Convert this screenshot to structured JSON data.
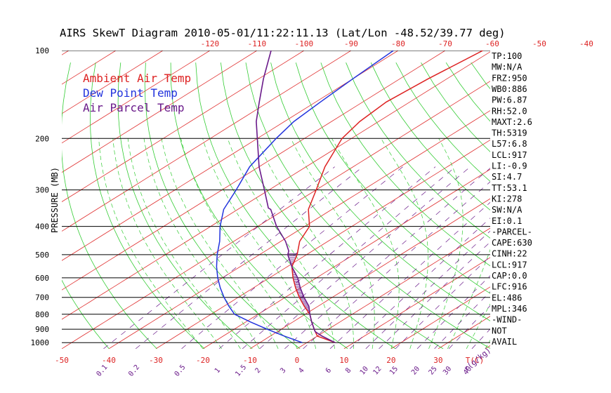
{
  "chart_data": {
    "type": "line",
    "title": "AIRS SkewT Diagram 2010-05-01/11:22:11.13 (Lat/Lon -48.52/39.77 deg)",
    "ylabel": "PRESSURE (MB)",
    "pressure_ticks": [
      "100",
      "200",
      "300",
      "400",
      "500",
      "600",
      "700",
      "800",
      "900",
      "1000"
    ],
    "pressure_levels": [
      100,
      200,
      300,
      400,
      500,
      600,
      700,
      800,
      900,
      1000
    ],
    "top_temp_ticks": [
      "-120",
      "-110",
      "-100",
      "-90",
      "-80",
      "-70",
      "-60",
      "-50",
      "-40"
    ],
    "top_temp_values": [
      -120,
      -110,
      -100,
      -90,
      -80,
      -70,
      -60,
      -50,
      -40
    ],
    "bottom_temp_ticks": [
      "-50",
      "-40",
      "-30",
      "-20",
      "-10",
      "0",
      "10",
      "20",
      "30",
      "T(C)"
    ],
    "bottom_temp_values": [
      -50,
      -40,
      -30,
      -20,
      -10,
      0,
      10,
      20,
      30
    ],
    "mixing_ratio_ticks": [
      "0.1",
      "0.2",
      "0.5",
      "1",
      "1.5",
      "2",
      "3",
      "4",
      "6",
      "8",
      "10",
      "12",
      "15",
      "20",
      "25",
      "30",
      "40"
    ],
    "mixing_ratio_unit": "r(g/kg)",
    "legend": [
      {
        "label": "Ambient Air Temp",
        "color": "#dd2222"
      },
      {
        "label": "Dew Point Temp",
        "color": "#2233dd"
      },
      {
        "label": "Air Parcel Temp",
        "color": "#6a1a8a"
      }
    ],
    "series": [
      {
        "name": "Ambient Air Temp",
        "color": "#dd2222",
        "points": [
          [
            1000,
            6
          ],
          [
            950,
            0
          ],
          [
            900,
            -3
          ],
          [
            850,
            -6
          ],
          [
            800,
            -9
          ],
          [
            750,
            -13
          ],
          [
            700,
            -17
          ],
          [
            650,
            -21
          ],
          [
            600,
            -25
          ],
          [
            550,
            -29
          ],
          [
            500,
            -32
          ],
          [
            450,
            -36
          ],
          [
            400,
            -39
          ],
          [
            350,
            -45
          ],
          [
            300,
            -50
          ],
          [
            250,
            -56
          ],
          [
            200,
            -62
          ],
          [
            175,
            -64
          ],
          [
            150,
            -65
          ],
          [
            125,
            -64
          ],
          [
            100,
            -62
          ]
        ]
      },
      {
        "name": "Dew Point Temp",
        "color": "#2233dd",
        "points": [
          [
            1000,
            -1
          ],
          [
            950,
            -7
          ],
          [
            900,
            -13
          ],
          [
            850,
            -19
          ],
          [
            800,
            -25
          ],
          [
            750,
            -29
          ],
          [
            700,
            -33
          ],
          [
            650,
            -37
          ],
          [
            600,
            -41
          ],
          [
            550,
            -45
          ],
          [
            500,
            -49
          ],
          [
            450,
            -53
          ],
          [
            400,
            -58
          ],
          [
            350,
            -63
          ],
          [
            300,
            -67
          ],
          [
            250,
            -72
          ],
          [
            200,
            -76
          ],
          [
            175,
            -78
          ],
          [
            150,
            -79
          ],
          [
            125,
            -80
          ],
          [
            100,
            -81
          ]
        ]
      },
      {
        "name": "Air Parcel Temp",
        "color": "#6a1a8a",
        "points": [
          [
            1000,
            6
          ],
          [
            950,
            1
          ],
          [
            917,
            -2
          ],
          [
            900,
            -3
          ],
          [
            850,
            -6
          ],
          [
            800,
            -9
          ],
          [
            750,
            -12
          ],
          [
            700,
            -16
          ],
          [
            650,
            -20
          ],
          [
            600,
            -24
          ],
          [
            550,
            -29
          ],
          [
            500,
            -34
          ],
          [
            486,
            -35
          ],
          [
            450,
            -39
          ],
          [
            400,
            -46
          ],
          [
            350,
            -53
          ],
          [
            346,
            -54
          ],
          [
            300,
            -61
          ],
          [
            250,
            -70
          ],
          [
            200,
            -80
          ],
          [
            175,
            -86
          ],
          [
            150,
            -92
          ],
          [
            125,
            -99
          ],
          [
            100,
            -107
          ]
        ]
      }
    ]
  },
  "indices": [
    "TP:100",
    "MW:N/A",
    "FRZ:950",
    "WB0:886",
    "PW:6.87",
    "RH:52.0",
    "MAXT:2.6",
    "TH:5319",
    "L57:6.8",
    "LCL:917",
    "LI:-0.9",
    "SI:4.7",
    "TT:53.1",
    "KI:278",
    "SW:N/A",
    "EI:0.1",
    "-PARCEL-",
    "CAPE:630",
    "CINH:22",
    "LCL:917",
    "CAP:0.0",
    "LFC:916",
    "EL:486",
    "MPL:346",
    "-WIND-",
    "NOT",
    "AVAIL"
  ]
}
